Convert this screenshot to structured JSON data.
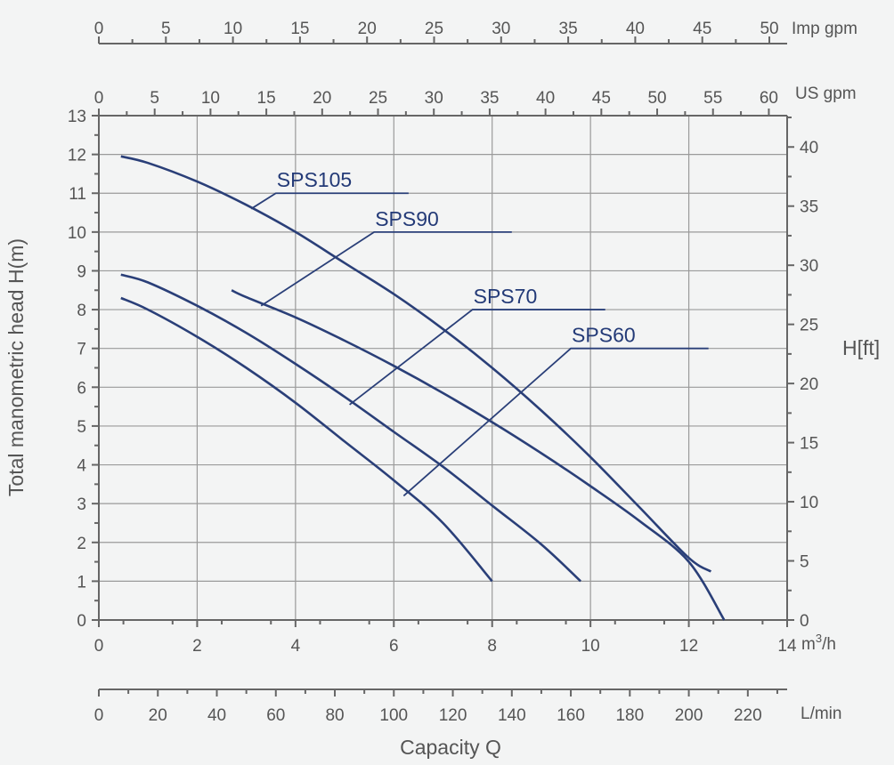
{
  "chart_data": {
    "type": "line",
    "x_unit": "m³/h",
    "x_ticks": [
      "0",
      "2",
      "4",
      "6",
      "8",
      "10",
      "12",
      "14"
    ],
    "x_range": [
      0,
      14
    ],
    "y_label": "Total manometric head H(m)",
    "y_ticks": [
      "0",
      "1",
      "2",
      "3",
      "4",
      "5",
      "6",
      "7",
      "8",
      "9",
      "10",
      "11",
      "12",
      "13"
    ],
    "y_range": [
      0,
      13
    ],
    "y2_label": "H[ft]",
    "y2_ticks": [
      "0",
      "5",
      "10",
      "15",
      "20",
      "25",
      "30",
      "35",
      "40"
    ],
    "top_us_label": "US gpm",
    "top_us_ticks": [
      "0",
      "5",
      "10",
      "15",
      "20",
      "25",
      "30",
      "35",
      "40",
      "45",
      "50",
      "55",
      "60"
    ],
    "top_imp_label": "Imp gpm",
    "top_imp_ticks": [
      "0",
      "5",
      "10",
      "15",
      "20",
      "25",
      "30",
      "35",
      "40",
      "45",
      "50"
    ],
    "bottom_label": "L/min",
    "bottom_ticks": [
      "0",
      "20",
      "40",
      "60",
      "80",
      "100",
      "120",
      "140",
      "160",
      "180",
      "200",
      "220"
    ],
    "xlabel": "Capacity Q",
    "grid": true,
    "series": [
      {
        "name": "SPS105",
        "points": [
          [
            0.45,
            11.95
          ],
          [
            1,
            11.78
          ],
          [
            2,
            11.3
          ],
          [
            3,
            10.7
          ],
          [
            4,
            10.0
          ],
          [
            5,
            9.2
          ],
          [
            6,
            8.4
          ],
          [
            7,
            7.5
          ],
          [
            8,
            6.5
          ],
          [
            9,
            5.4
          ],
          [
            10,
            4.2
          ],
          [
            11,
            2.9
          ],
          [
            12,
            1.6
          ],
          [
            12.45,
            1.25
          ]
        ]
      },
      {
        "name": "SPS90",
        "points": [
          [
            2.7,
            8.5
          ],
          [
            3,
            8.32
          ],
          [
            4,
            7.8
          ],
          [
            5,
            7.2
          ],
          [
            6,
            6.55
          ],
          [
            7,
            5.85
          ],
          [
            8,
            5.1
          ],
          [
            9,
            4.3
          ],
          [
            10,
            3.45
          ],
          [
            11,
            2.55
          ],
          [
            12,
            1.5
          ],
          [
            12.72,
            0.0
          ]
        ]
      },
      {
        "name": "SPS70",
        "points": [
          [
            0.45,
            8.9
          ],
          [
            1,
            8.7
          ],
          [
            2,
            8.1
          ],
          [
            3,
            7.4
          ],
          [
            4,
            6.6
          ],
          [
            5,
            5.75
          ],
          [
            6,
            4.85
          ],
          [
            7,
            3.95
          ],
          [
            8,
            2.95
          ],
          [
            9,
            1.95
          ],
          [
            9.8,
            1.0
          ]
        ]
      },
      {
        "name": "SPS60",
        "points": [
          [
            0.45,
            8.3
          ],
          [
            1,
            8.0
          ],
          [
            2,
            7.3
          ],
          [
            3,
            6.5
          ],
          [
            4,
            5.6
          ],
          [
            5,
            4.6
          ],
          [
            6,
            3.6
          ],
          [
            7,
            2.5
          ],
          [
            8,
            1.0
          ]
        ]
      }
    ],
    "annotations": [
      {
        "label": "SPS105",
        "line_from": [
          3.1,
          10.6
        ],
        "line_to": [
          3.6,
          11.0
        ],
        "line_end": [
          6.3,
          11.0
        ]
      },
      {
        "label": "SPS90",
        "line_from": [
          3.3,
          8.1
        ],
        "line_to": [
          5.6,
          10.0
        ],
        "line_end": [
          8.4,
          10.0
        ]
      },
      {
        "label": "SPS70",
        "line_from": [
          5.1,
          5.55
        ],
        "line_to": [
          7.6,
          8.0
        ],
        "line_end": [
          10.3,
          8.0
        ]
      },
      {
        "label": "SPS60",
        "line_from": [
          6.2,
          3.2
        ],
        "line_to": [
          9.6,
          7.0
        ],
        "line_end": [
          12.4,
          7.0
        ]
      }
    ]
  }
}
